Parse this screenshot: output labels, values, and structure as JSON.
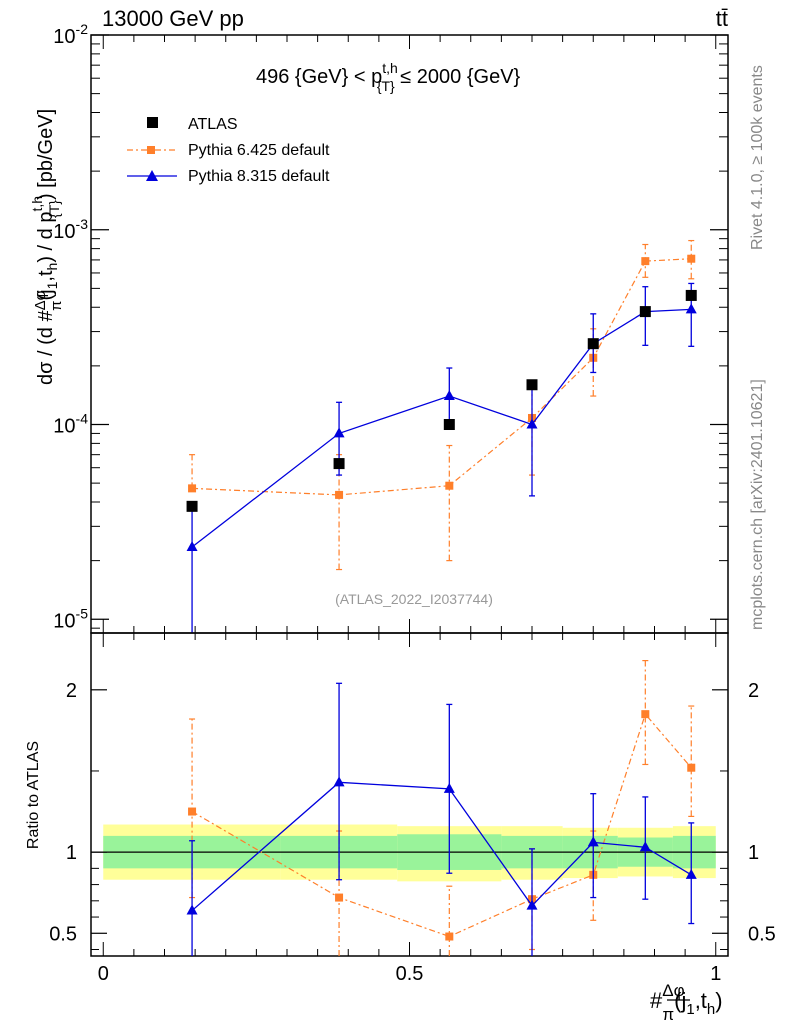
{
  "header": {
    "left": "13000 GeV pp",
    "right": "tt̄"
  },
  "side_labels": {
    "rivet": "Rivet 4.1.0, ≥ 100k events",
    "mcplots": "mcplots.cern.ch [arXiv:2401.10621]"
  },
  "chart_data": [
    {
      "type": "scatter",
      "title": "496 {GeV} < p_{T}^{t,h} ≤ 2000 {GeV}",
      "title_parts": {
        "pre": "496 {GeV} < p",
        "sup": "t,h",
        "sub": "{T}",
        "post": " ≤ 2000 {GeV}"
      },
      "ylabel": "dσ / (d #Δφ/π(j1,th) / d pT^t,h) [pb/GeV]",
      "ylabel_parts": {
        "a": "dσ / (d #",
        "frac_num": "Δφ",
        "frac_den": "π",
        "b": "(j",
        "b_sub": "1",
        "c": ",t",
        "c_sub": "h",
        "d": ") / d p",
        "d_sup": "t,h",
        "d_sub": "{T}",
        "e": ") [pb/GeV]"
      },
      "yscale": "log",
      "ylim": [
        8.5e-06,
        0.01
      ],
      "xlim": [
        -0.02,
        1.02
      ],
      "y_tick_labels": [
        "10",
        "10",
        "10",
        "10"
      ],
      "y_tick_exponents": [
        "-5",
        "-4",
        "-3",
        "-2"
      ],
      "y_tick_values": [
        1e-05,
        0.0001,
        0.001,
        0.01
      ],
      "watermark": "(ATLAS_2022_I2037744)",
      "legend_position": "top-left",
      "legend": [
        "ATLAS",
        "Pythia 6.425 default",
        "Pythia 8.315 default"
      ],
      "series": [
        {
          "name": "ATLAS",
          "color": "#000000",
          "marker": "square",
          "x": [
            0.145,
            0.385,
            0.565,
            0.7,
            0.8,
            0.885,
            0.96
          ],
          "y": [
            3.8e-05,
            6.3e-05,
            0.0001,
            0.00016,
            0.00026,
            0.00038,
            0.00046
          ]
        },
        {
          "name": "Pythia 6.425 default",
          "color": "#ff7f2a",
          "marker": "square",
          "line": "dashdot",
          "x": [
            0.145,
            0.385,
            0.565,
            0.7,
            0.8,
            0.885,
            0.96
          ],
          "y": [
            4.7e-05,
            4.35e-05,
            4.85e-05,
            0.000108,
            0.00022,
            0.00069,
            0.00071
          ],
          "yerr_low": [
            4.7e-05,
            4.35e-05,
            4.85e-05,
            0.000108,
            0.00022,
            0.00069,
            0.00071
          ],
          "yerr_low_values": [
            4.7e-05,
            1.8e-05,
            2e-05,
            5.5e-05,
            0.00014,
            0.00057,
            0.00056
          ],
          "yerr_high_values": [
            7e-05,
            7e-05,
            7.8e-05,
            0.00016,
            0.00031,
            0.00084,
            0.00088
          ]
        },
        {
          "name": "Pythia 8.315 default",
          "color": "#0000dd",
          "marker": "triangle",
          "line": "solid",
          "x": [
            0.145,
            0.385,
            0.565,
            0.7,
            0.8,
            0.885,
            0.96
          ],
          "y": [
            2.35e-05,
            9e-05,
            0.00014,
            0.0001,
            0.00026,
            0.00038,
            0.00039
          ],
          "yerr_low_values": [
            8.5e-06,
            5.5e-05,
            9.5e-05,
            4.3e-05,
            0.000185,
            0.000255,
            0.000252
          ],
          "yerr_high_values": [
            3.6e-05,
            0.00013,
            0.000195,
            0.00016,
            0.00037,
            0.00051,
            0.00053
          ]
        }
      ]
    },
    {
      "type": "scatter",
      "ylabel": "Ratio to ATLAS",
      "xlabel": "#Δφ/π(j1,th)",
      "xlabel_parts": {
        "a": "#",
        "frac_num": "Δφ",
        "frac_den": "π",
        "b": "(j",
        "b_sub": "1",
        "c": ",t",
        "c_sub": "h",
        "d": ")"
      },
      "xlim": [
        -0.02,
        1.02
      ],
      "ylim": [
        0.36,
        2.35
      ],
      "x_tick_labels": [
        "0",
        "0.5",
        "1"
      ],
      "x_tick_values": [
        0,
        0.5,
        1
      ],
      "y_tick_labels": [
        "0.5",
        "1",
        "2"
      ],
      "y_tick_values": [
        0.5,
        1,
        2
      ],
      "bands": {
        "edges": [
          0,
          0.29,
          0.48,
          0.65,
          0.75,
          0.84,
          0.93,
          1.0
        ],
        "green_low": [
          0.9,
          0.9,
          0.89,
          0.9,
          0.9,
          0.91,
          0.9
        ],
        "green_high": [
          1.1,
          1.1,
          1.11,
          1.1,
          1.1,
          1.09,
          1.1
        ],
        "yellow_low": [
          0.83,
          0.83,
          0.82,
          0.83,
          0.84,
          0.85,
          0.84
        ],
        "yellow_high": [
          1.17,
          1.17,
          1.16,
          1.16,
          1.15,
          1.15,
          1.16
        ],
        "green_color": "#99f39a",
        "yellow_color": "#ffff99"
      },
      "series": [
        {
          "name": "Pythia 6.425 default",
          "color": "#ff7f2a",
          "x": [
            0.145,
            0.385,
            0.565,
            0.7,
            0.8,
            0.885,
            0.96
          ],
          "y": [
            1.25,
            0.72,
            0.48,
            0.71,
            0.86,
            1.85,
            1.52
          ],
          "lo": [
            0.72,
            0.36,
            0.36,
            0.4,
            0.58,
            1.54,
            1.22
          ],
          "hi": [
            1.82,
            1.13,
            0.79,
            1.02,
            1.13,
            2.18,
            1.9
          ]
        },
        {
          "name": "Pythia 8.315 default",
          "color": "#0000dd",
          "x": [
            0.145,
            0.385,
            0.565,
            0.7,
            0.8,
            0.885,
            0.96
          ],
          "y": [
            0.64,
            1.43,
            1.39,
            0.67,
            1.06,
            1.03,
            0.86
          ],
          "lo": [
            0.36,
            0.83,
            0.87,
            0.36,
            0.72,
            0.71,
            0.56
          ],
          "hi": [
            1.07,
            2.04,
            1.91,
            1.02,
            1.36,
            1.34,
            1.18
          ]
        }
      ]
    }
  ]
}
